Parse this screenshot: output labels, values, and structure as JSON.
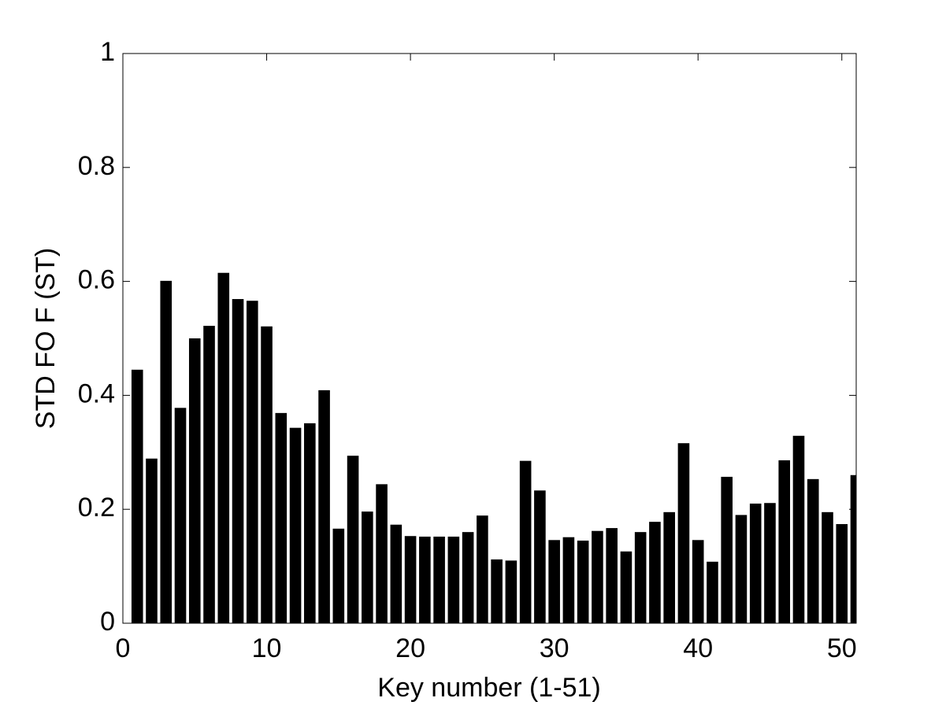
{
  "chart_data": {
    "type": "bar",
    "x_label": "Key number (1-51)",
    "y_label": "STD FO F (ST)",
    "x": [
      1,
      2,
      3,
      4,
      5,
      6,
      7,
      8,
      9,
      10,
      11,
      12,
      13,
      14,
      15,
      16,
      17,
      18,
      19,
      20,
      21,
      22,
      23,
      24,
      25,
      26,
      27,
      28,
      29,
      30,
      31,
      32,
      33,
      34,
      35,
      36,
      37,
      38,
      39,
      40,
      41,
      42,
      43,
      44,
      45,
      46,
      47,
      48,
      49,
      50,
      51
    ],
    "values": [
      0.445,
      0.289,
      0.601,
      0.378,
      0.5,
      0.522,
      0.615,
      0.569,
      0.566,
      0.521,
      0.369,
      0.343,
      0.351,
      0.409,
      0.166,
      0.294,
      0.196,
      0.244,
      0.173,
      0.153,
      0.152,
      0.152,
      0.152,
      0.16,
      0.189,
      0.112,
      0.11,
      0.285,
      0.233,
      0.146,
      0.151,
      0.145,
      0.162,
      0.167,
      0.126,
      0.16,
      0.178,
      0.195,
      0.316,
      0.146,
      0.108,
      0.257,
      0.19,
      0.21,
      0.211,
      0.286,
      0.329,
      0.253,
      0.195,
      0.174,
      0.26
    ],
    "color": "#000000",
    "xlim": [
      0,
      51
    ],
    "xticks": [
      0,
      10,
      20,
      30,
      40,
      50
    ],
    "ylim": [
      0,
      1
    ],
    "yticks": [
      0,
      0.2,
      0.4,
      0.6,
      0.8,
      1
    ],
    "grid": false
  }
}
